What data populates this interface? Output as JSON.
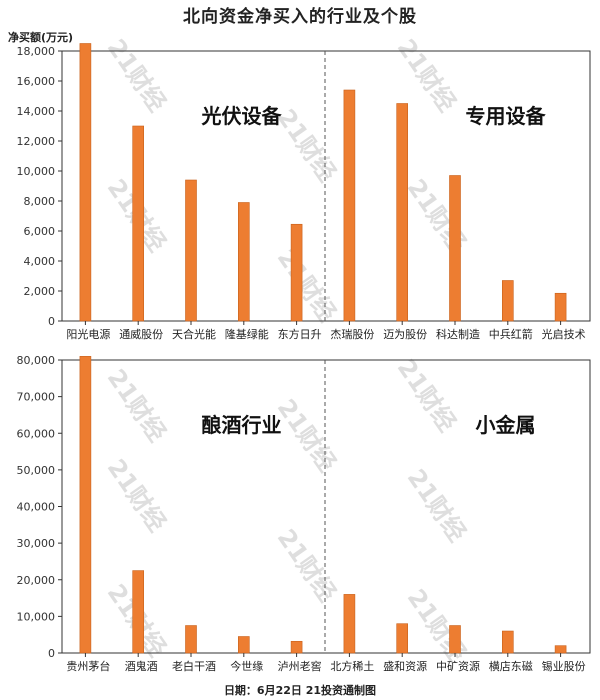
{
  "header": {
    "title": "北向资金净买入的行业及个股",
    "unit_label": "净买额(万元)"
  },
  "footer": {
    "text": "日期：6月22日 21投资通制图"
  },
  "watermark": "21财经",
  "colors": {
    "bar": "#ED7D31",
    "bar_edge": "#C8601A",
    "axis": "#333333",
    "divider": "#555555"
  },
  "chart_data": [
    {
      "type": "bar",
      "ylim": [
        0,
        18000
      ],
      "yticks": [
        "0",
        "2,000",
        "4,000",
        "6,000",
        "8,000",
        "10,000",
        "12,000",
        "14,000",
        "16,000",
        "18,000"
      ],
      "ytick_values": [
        0,
        2000,
        4000,
        6000,
        8000,
        10000,
        12000,
        14000,
        16000,
        18000
      ],
      "groups": [
        {
          "label": "光伏设备",
          "categories": [
            "阳光电源",
            "通威股份",
            "天合光能",
            "隆基绿能",
            "东方日升"
          ],
          "values": [
            18500,
            13000,
            9400,
            7900,
            6450
          ]
        },
        {
          "label": "专用设备",
          "categories": [
            "杰瑞股份",
            "迈为股份",
            "科达制造",
            "中兵红箭",
            "光启技术"
          ],
          "values": [
            15400,
            14500,
            9700,
            2700,
            1850
          ]
        }
      ]
    },
    {
      "type": "bar",
      "ylim": [
        0,
        80000
      ],
      "yticks": [
        "0",
        "10,000",
        "20,000",
        "30,000",
        "40,000",
        "50,000",
        "60,000",
        "70,000",
        "80,000"
      ],
      "ytick_values": [
        0,
        10000,
        20000,
        30000,
        40000,
        50000,
        60000,
        70000,
        80000
      ],
      "groups": [
        {
          "label": "酿酒行业",
          "categories": [
            "贵州茅台",
            "酒鬼酒",
            "老白干酒",
            "今世缘",
            "泸州老窖"
          ],
          "values": [
            81000,
            22500,
            7500,
            4500,
            3200
          ]
        },
        {
          "label": "小金属",
          "categories": [
            "北方稀土",
            "盛和资源",
            "中矿资源",
            "横店东磁",
            "锡业股份"
          ],
          "values": [
            16000,
            8000,
            7500,
            6000,
            2000
          ]
        }
      ]
    }
  ]
}
